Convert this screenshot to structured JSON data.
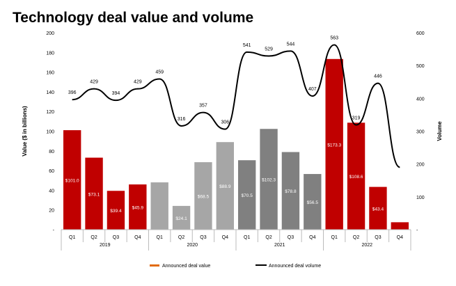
{
  "chart_data": {
    "type": "bar+line",
    "title": "Technology deal value and volume",
    "ylabel": "Value ($ in billions)",
    "y2label": "Volume",
    "ylim": [
      0,
      200
    ],
    "y2lim": [
      0,
      600
    ],
    "yticks": [
      "-",
      "20",
      "40",
      "60",
      "80",
      "100",
      "120",
      "140",
      "160",
      "180",
      "200"
    ],
    "y2ticks": [
      "-",
      "100",
      "200",
      "300",
      "400",
      "500",
      "600"
    ],
    "categories": [
      "Q1",
      "Q2",
      "Q3",
      "Q4",
      "Q1",
      "Q2",
      "Q3",
      "Q4",
      "Q1",
      "Q2",
      "Q3",
      "Q4",
      "Q1",
      "Q2",
      "Q3",
      "Q4"
    ],
    "years": [
      "2019",
      "2020",
      "2021",
      "2022"
    ],
    "series": [
      {
        "name": "Announced deal value",
        "type": "bar",
        "values": [
          101.0,
          73.1,
          39.4,
          45.9,
          48,
          24.1,
          68.5,
          88.9,
          70.5,
          102.3,
          78.8,
          56.5,
          173.3,
          108.6,
          43.4,
          7.5
        ],
        "labels": [
          "$101.0",
          "$73.1",
          "$39.4",
          "$45.9",
          "",
          "$24.1",
          "$68.5",
          "$88.9",
          "$70.5",
          "$102.3",
          "$78.8",
          "$56.5",
          "$173.3",
          "$108.6",
          "$43.4",
          ""
        ],
        "colors": [
          "#c00000",
          "#c00000",
          "#c00000",
          "#c00000",
          "#a6a6a6",
          "#a6a6a6",
          "#a6a6a6",
          "#a6a6a6",
          "#808080",
          "#808080",
          "#808080",
          "#808080",
          "#c00000",
          "#c00000",
          "#c00000",
          "#c00000"
        ]
      },
      {
        "name": "Announced deal volume",
        "type": "line",
        "values": [
          396,
          429,
          394,
          429,
          459,
          316,
          357,
          306,
          541,
          529,
          544,
          407,
          563,
          319,
          446,
          190
        ],
        "labels": [
          "396",
          "429",
          "394",
          "429",
          "459",
          "316",
          "357",
          "306",
          "541",
          "529",
          "544",
          "407",
          "563",
          "319",
          "446",
          ""
        ]
      }
    ],
    "legend": {
      "position": "bottom",
      "swatch_color": "#e26b0a"
    }
  }
}
